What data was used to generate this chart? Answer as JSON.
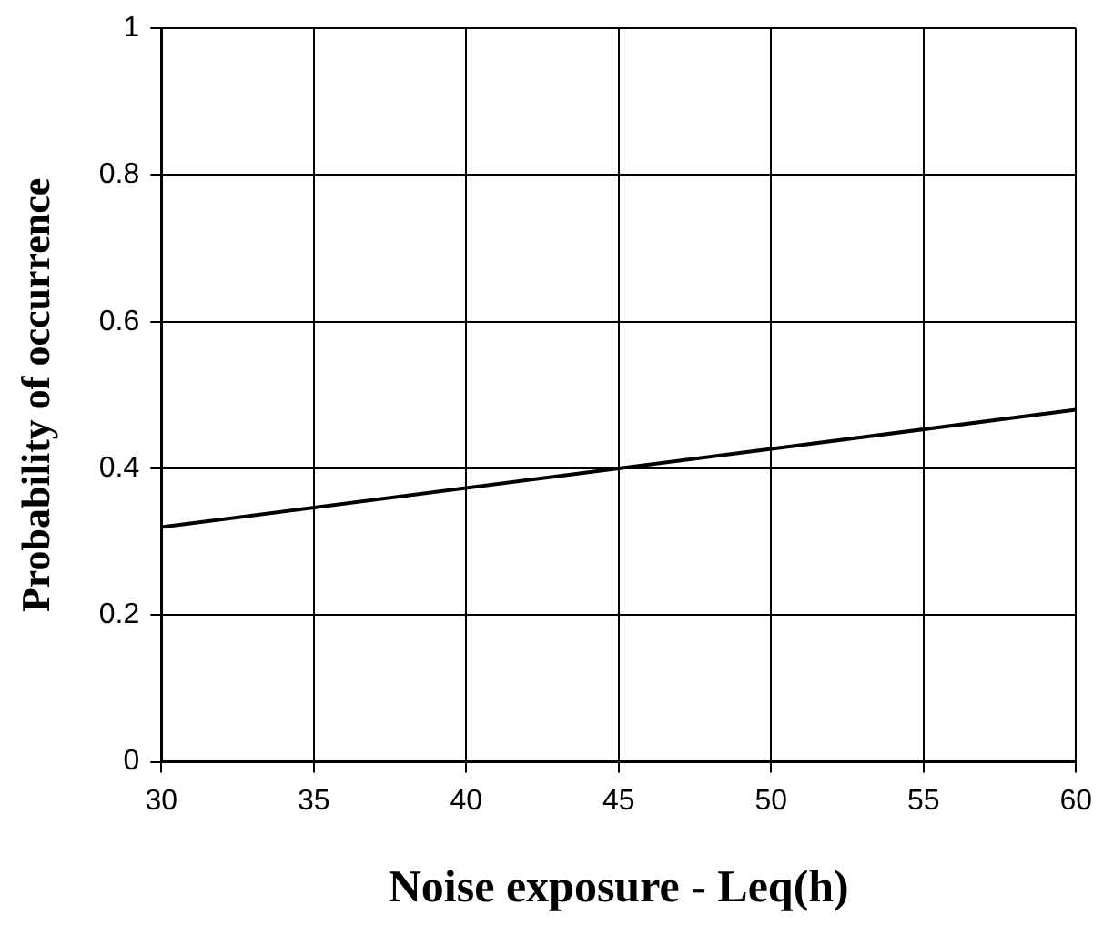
{
  "chart_data": {
    "type": "line",
    "xlabel": "Noise exposure - Leq(h)",
    "ylabel": "Probability of occurrence",
    "x": [
      30,
      45,
      60
    ],
    "series": [
      {
        "color": "#000000",
        "values": [
          0.32,
          0.4,
          0.48
        ]
      }
    ],
    "xlim": [
      30,
      60
    ],
    "xticks": [
      30,
      35,
      40,
      45,
      50,
      55,
      60
    ],
    "ylim": [
      0,
      1
    ],
    "yticks": [
      0,
      0.2,
      0.4,
      0.6,
      0.8,
      1
    ],
    "grid": true,
    "legend": false,
    "marker": "none",
    "line_style": "solid"
  }
}
